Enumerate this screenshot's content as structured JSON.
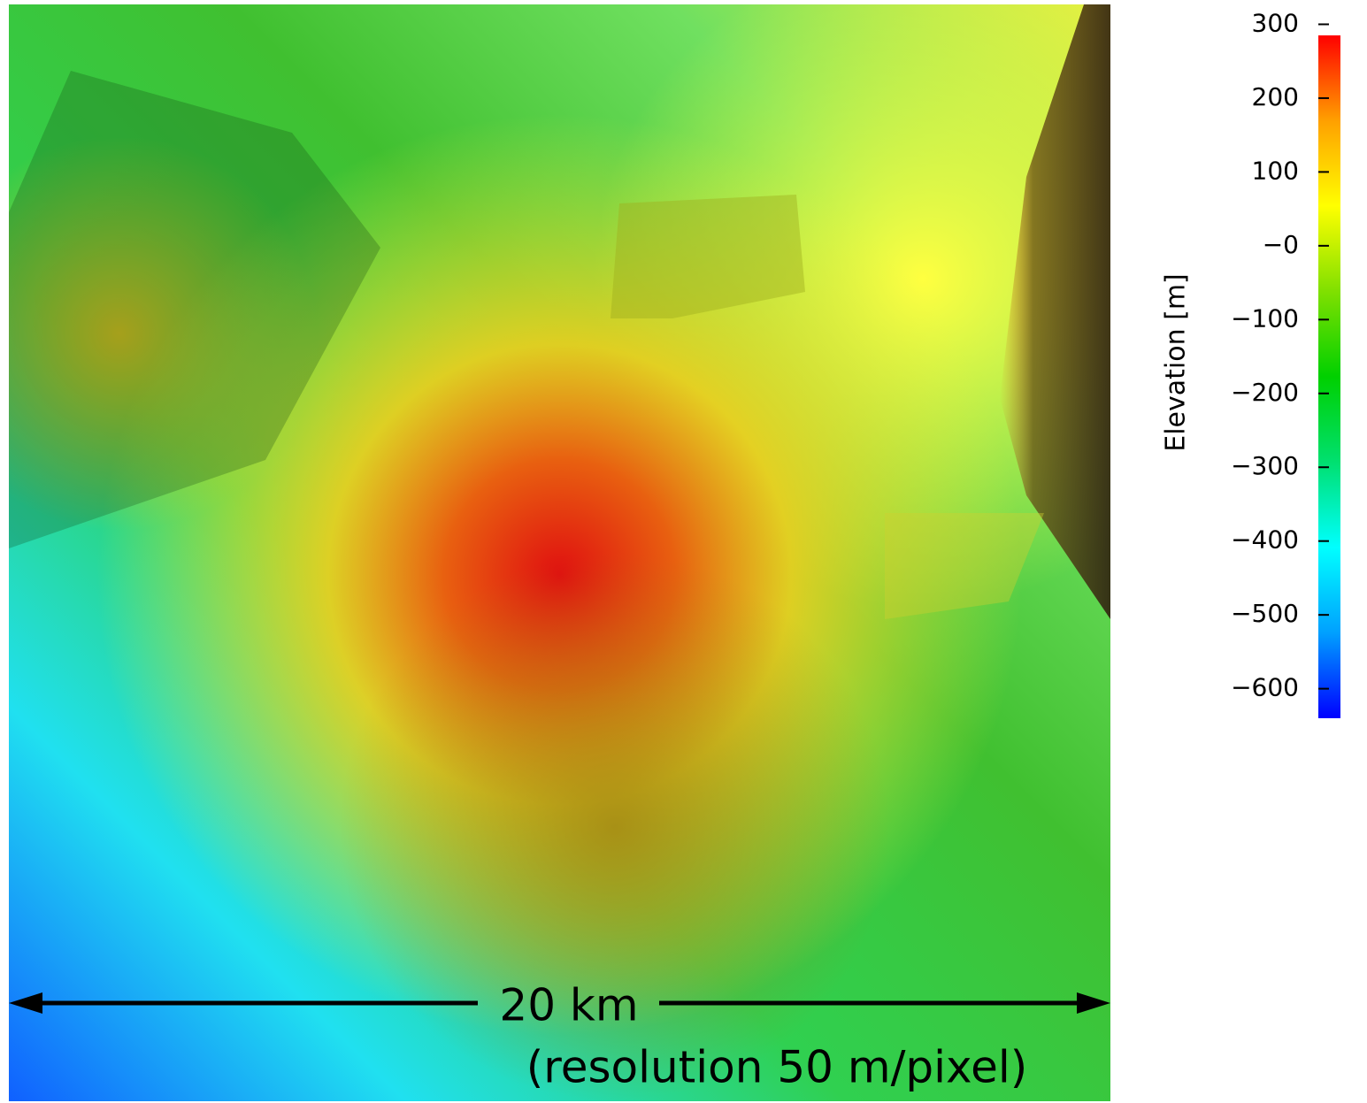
{
  "map": {
    "colorbar": {
      "label": "Elevation [m]",
      "lim": [
        -640,
        285
      ],
      "colormap": [
        "#0000ff",
        "#00a0ff",
        "#00ffff",
        "#00e070",
        "#00d000",
        "#80e000",
        "#ffff00",
        "#ffa000",
        "#ff0000"
      ],
      "ticks": [
        300,
        200,
        100,
        {
          "value": 0,
          "label": "−0"
        },
        {
          "value": -100,
          "label": "−100"
        },
        {
          "value": -200,
          "label": "−200"
        },
        {
          "value": -300,
          "label": "−300"
        },
        {
          "value": -400,
          "label": "−400"
        },
        {
          "value": -500,
          "label": "−500"
        },
        {
          "value": -600,
          "label": "−600"
        }
      ]
    },
    "scale_bar": {
      "label": "20 km",
      "note": "(resolution 50 m/pixel)"
    }
  }
}
